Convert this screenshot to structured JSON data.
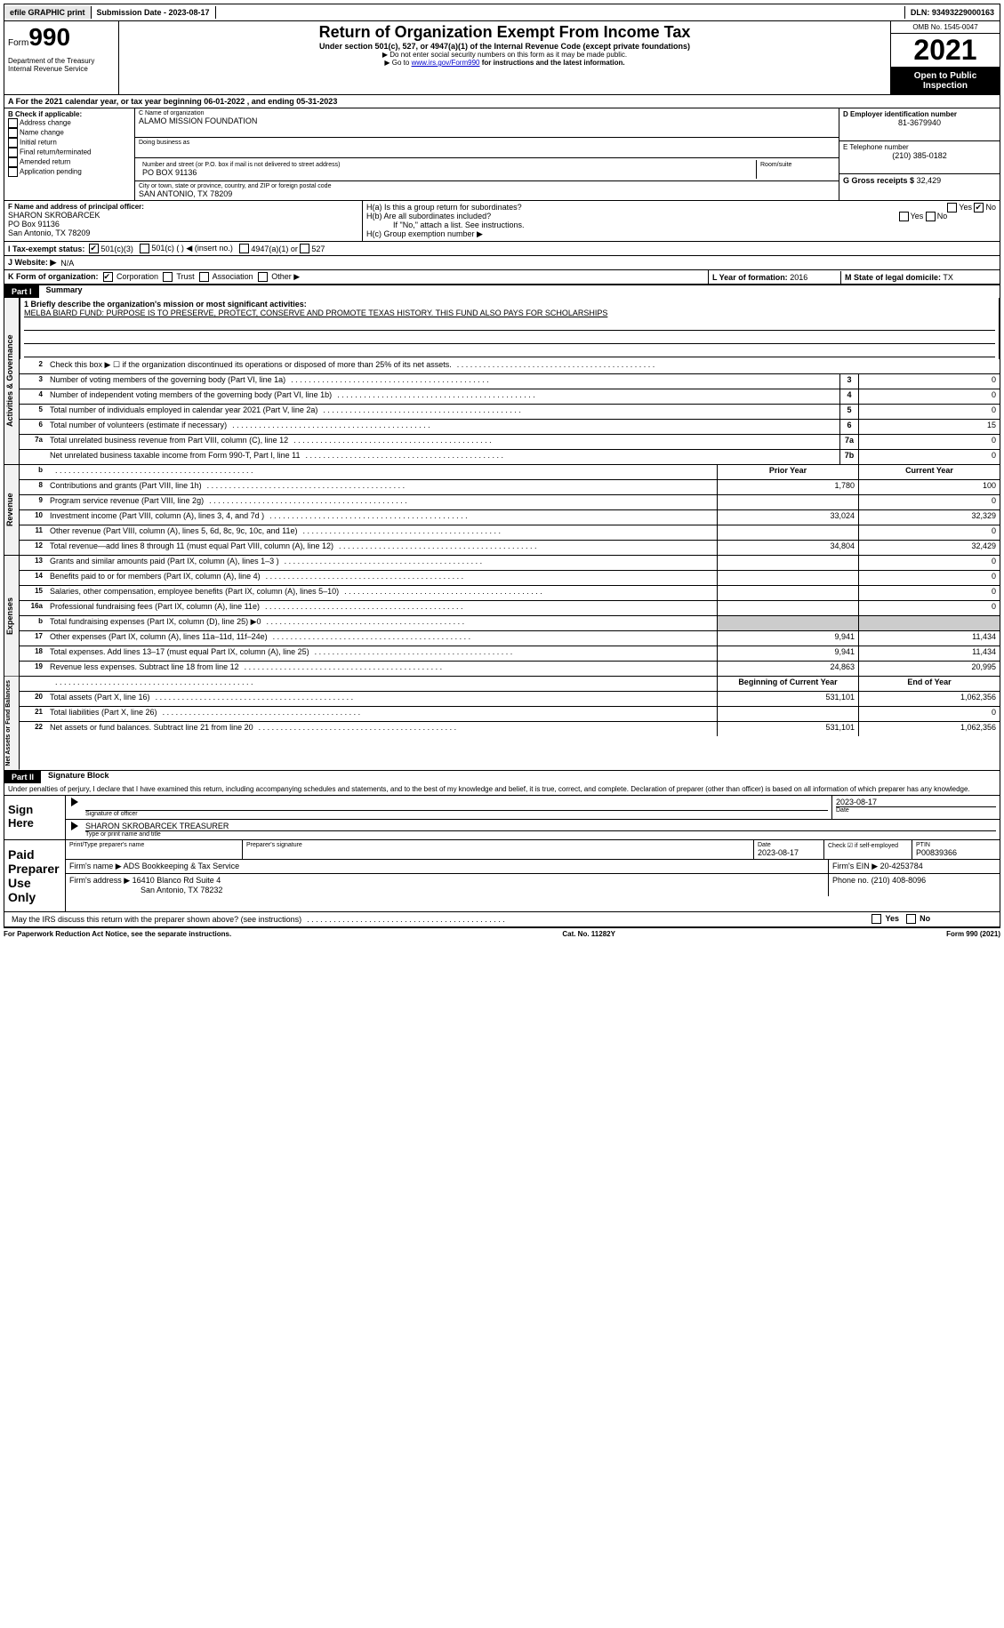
{
  "topbar": {
    "efile": "efile GRAPHIC print",
    "submission": "Submission Date - 2023-08-17",
    "dln": "DLN: 93493229000163"
  },
  "header": {
    "form_label": "Form",
    "form_num": "990",
    "dept": "Department of the Treasury\nInternal Revenue Service",
    "title": "Return of Organization Exempt From Income Tax",
    "subtitle": "Under section 501(c), 527, or 4947(a)(1) of the Internal Revenue Code (except private foundations)",
    "instr1": "▶ Do not enter social security numbers on this form as it may be made public.",
    "instr2_pre": "▶ Go to ",
    "instr2_link": "www.irs.gov/Form990",
    "instr2_post": " for instructions and the latest information.",
    "omb": "OMB No. 1545-0047",
    "year": "2021",
    "open": "Open to Public Inspection"
  },
  "rowA": "A For the 2021 calendar year, or tax year beginning 06-01-2022   , and ending 05-31-2023",
  "B": {
    "label": "B Check if applicable:",
    "addr": "Address change",
    "name": "Name change",
    "init": "Initial return",
    "final": "Final return/terminated",
    "amend": "Amended return",
    "app": "Application pending"
  },
  "C": {
    "name_label": "C Name of organization",
    "name": "ALAMO MISSION FOUNDATION",
    "dba_label": "Doing business as",
    "street_label": "Number and street (or P.O. box if mail is not delivered to street address)",
    "room_label": "Room/suite",
    "street": "PO BOX 91136",
    "city_label": "City or town, state or province, country, and ZIP or foreign postal code",
    "city": "SAN ANTONIO, TX  78209"
  },
  "D": {
    "label": "D Employer identification number",
    "val": "81-3679940"
  },
  "E": {
    "label": "E Telephone number",
    "val": "(210) 385-0182"
  },
  "G": {
    "label": "G Gross receipts $",
    "val": "32,429"
  },
  "F": {
    "label": "F Name and address of principal officer:",
    "name": "SHARON SKROBARCEK",
    "addr1": "PO Box 91136",
    "addr2": "San Antonio, TX  78209"
  },
  "H": {
    "a_label": "H(a)  Is this a group return for subordinates?",
    "b_label": "H(b)  Are all subordinates included?",
    "b_note": "If \"No,\" attach a list. See instructions.",
    "c_label": "H(c)  Group exemption number ▶",
    "yes": "Yes",
    "no": "No"
  },
  "I": {
    "label": "I  Tax-exempt status:",
    "c3": "501(c)(3)",
    "c_blank": "501(c) (  ) ◀ (insert no.)",
    "a1": "4947(a)(1) or",
    "s527": "527"
  },
  "J": {
    "label": "J  Website: ▶",
    "val": "N/A"
  },
  "K": {
    "label": "K Form of organization:",
    "corp": "Corporation",
    "trust": "Trust",
    "assoc": "Association",
    "other": "Other ▶"
  },
  "L": {
    "label": "L Year of formation:",
    "val": "2016"
  },
  "M": {
    "label": "M State of legal domicile:",
    "val": "TX"
  },
  "part1": {
    "header": "Part I",
    "title": "Summary"
  },
  "mission": {
    "label": "1  Briefly describe the organization's mission or most significant activities:",
    "text": "MELBA BIARD FUND: PURPOSE IS TO PRESERVE, PROTECT, CONSERVE AND PROMOTE TEXAS HISTORY. THIS FUND ALSO PAYS FOR SCHOLARSHIPS"
  },
  "line2": "Check this box ▶ ☐ if the organization discontinued its operations or disposed of more than 25% of its net assets.",
  "side": {
    "gov": "Activities & Governance",
    "rev": "Revenue",
    "exp": "Expenses",
    "net": "Net Assets or Fund Balances"
  },
  "cols": {
    "prior": "Prior Year",
    "current": "Current Year",
    "begin": "Beginning of Current Year",
    "end": "End of Year"
  },
  "gov_lines": [
    {
      "n": "3",
      "d": "Number of voting members of the governing body (Part VI, line 1a)",
      "box": "3",
      "v": "0"
    },
    {
      "n": "4",
      "d": "Number of independent voting members of the governing body (Part VI, line 1b)",
      "box": "4",
      "v": "0"
    },
    {
      "n": "5",
      "d": "Total number of individuals employed in calendar year 2021 (Part V, line 2a)",
      "box": "5",
      "v": "0"
    },
    {
      "n": "6",
      "d": "Total number of volunteers (estimate if necessary)",
      "box": "6",
      "v": "15"
    },
    {
      "n": "7a",
      "d": "Total unrelated business revenue from Part VIII, column (C), line 12",
      "box": "7a",
      "v": "0"
    },
    {
      "n": "",
      "d": "Net unrelated business taxable income from Form 990-T, Part I, line 11",
      "box": "7b",
      "v": "0"
    }
  ],
  "gov_b_label": "b",
  "rev_lines": [
    {
      "n": "8",
      "d": "Contributions and grants (Part VIII, line 1h)",
      "p": "1,780",
      "c": "100"
    },
    {
      "n": "9",
      "d": "Program service revenue (Part VIII, line 2g)",
      "p": "",
      "c": "0"
    },
    {
      "n": "10",
      "d": "Investment income (Part VIII, column (A), lines 3, 4, and 7d )",
      "p": "33,024",
      "c": "32,329"
    },
    {
      "n": "11",
      "d": "Other revenue (Part VIII, column (A), lines 5, 6d, 8c, 9c, 10c, and 11e)",
      "p": "",
      "c": "0"
    },
    {
      "n": "12",
      "d": "Total revenue—add lines 8 through 11 (must equal Part VIII, column (A), line 12)",
      "p": "34,804",
      "c": "32,429"
    }
  ],
  "exp_lines": [
    {
      "n": "13",
      "d": "Grants and similar amounts paid (Part IX, column (A), lines 1–3 )",
      "p": "",
      "c": "0"
    },
    {
      "n": "14",
      "d": "Benefits paid to or for members (Part IX, column (A), line 4)",
      "p": "",
      "c": "0"
    },
    {
      "n": "15",
      "d": "Salaries, other compensation, employee benefits (Part IX, column (A), lines 5–10)",
      "p": "",
      "c": "0"
    },
    {
      "n": "16a",
      "d": "Professional fundraising fees (Part IX, column (A), line 11e)",
      "p": "",
      "c": "0"
    },
    {
      "n": "b",
      "d": "Total fundraising expenses (Part IX, column (D), line 25) ▶0",
      "p": "shaded",
      "c": "shaded"
    },
    {
      "n": "17",
      "d": "Other expenses (Part IX, column (A), lines 11a–11d, 11f–24e)",
      "p": "9,941",
      "c": "11,434"
    },
    {
      "n": "18",
      "d": "Total expenses. Add lines 13–17 (must equal Part IX, column (A), line 25)",
      "p": "9,941",
      "c": "11,434"
    },
    {
      "n": "19",
      "d": "Revenue less expenses. Subtract line 18 from line 12",
      "p": "24,863",
      "c": "20,995"
    }
  ],
  "net_lines": [
    {
      "n": "20",
      "d": "Total assets (Part X, line 16)",
      "p": "531,101",
      "c": "1,062,356"
    },
    {
      "n": "21",
      "d": "Total liabilities (Part X, line 26)",
      "p": "",
      "c": "0"
    },
    {
      "n": "22",
      "d": "Net assets or fund balances. Subtract line 21 from line 20",
      "p": "531,101",
      "c": "1,062,356"
    }
  ],
  "part2": {
    "header": "Part II",
    "title": "Signature Block"
  },
  "declare": "Under penalties of perjury, I declare that I have examined this return, including accompanying schedules and statements, and to the best of my knowledge and belief, it is true, correct, and complete. Declaration of preparer (other than officer) is based on all information of which preparer has any knowledge.",
  "sign": {
    "here": "Sign Here",
    "sig_label": "Signature of officer",
    "date": "2023-08-17",
    "date_label": "Date",
    "name": "SHARON SKROBARCEK  TREASURER",
    "name_label": "Type or print name and title"
  },
  "paid": {
    "label": "Paid Preparer Use Only",
    "print_label": "Print/Type preparer's name",
    "sig_label": "Preparer's signature",
    "date_label": "Date",
    "date": "2023-08-17",
    "check_label": "Check ☑ if self-employed",
    "ptin_label": "PTIN",
    "ptin": "P00839366",
    "firm_name_label": "Firm's name   ▶",
    "firm_name": "ADS Bookkeeping & Tax Service",
    "firm_ein_label": "Firm's EIN ▶",
    "firm_ein": "20-4253784",
    "firm_addr_label": "Firm's address ▶",
    "firm_addr": "16410 Blanco Rd Suite 4",
    "firm_city": "San Antonio, TX  78232",
    "phone_label": "Phone no.",
    "phone": "(210) 408-8096"
  },
  "discuss": "May the IRS discuss this return with the preparer shown above? (see instructions)",
  "footer": {
    "left": "For Paperwork Reduction Act Notice, see the separate instructions.",
    "mid": "Cat. No. 11282Y",
    "right": "Form 990 (2021)"
  }
}
